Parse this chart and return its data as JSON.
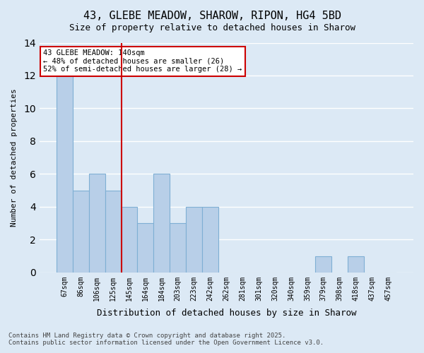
{
  "title_line1": "43, GLEBE MEADOW, SHAROW, RIPON, HG4 5BD",
  "title_line2": "Size of property relative to detached houses in Sharow",
  "xlabel": "Distribution of detached houses by size in Sharow",
  "ylabel": "Number of detached properties",
  "categories": [
    "67sqm",
    "86sqm",
    "106sqm",
    "125sqm",
    "145sqm",
    "164sqm",
    "184sqm",
    "203sqm",
    "223sqm",
    "242sqm",
    "262sqm",
    "281sqm",
    "301sqm",
    "320sqm",
    "340sqm",
    "359sqm",
    "379sqm",
    "398sqm",
    "418sqm",
    "437sqm",
    "457sqm"
  ],
  "values": [
    12,
    5,
    6,
    5,
    4,
    3,
    6,
    3,
    4,
    4,
    0,
    0,
    0,
    0,
    0,
    0,
    1,
    0,
    1,
    0,
    0
  ],
  "bar_color": "#b8cfe8",
  "bar_edge_color": "#7fafd4",
  "background_color": "#dce9f5",
  "plot_bg_color": "#dce9f5",
  "grid_color": "#ffffff",
  "vline_x": 4,
  "vline_color": "#cc0000",
  "annotation_title": "43 GLEBE MEADOW: 140sqm",
  "annotation_line1": "← 48% of detached houses are smaller (26)",
  "annotation_line2": "52% of semi-detached houses are larger (28) →",
  "annotation_box_color": "#cc0000",
  "ylim": [
    0,
    14
  ],
  "yticks": [
    0,
    2,
    4,
    6,
    8,
    10,
    12,
    14
  ],
  "footnote_line1": "Contains HM Land Registry data © Crown copyright and database right 2025.",
  "footnote_line2": "Contains public sector information licensed under the Open Government Licence v3.0."
}
